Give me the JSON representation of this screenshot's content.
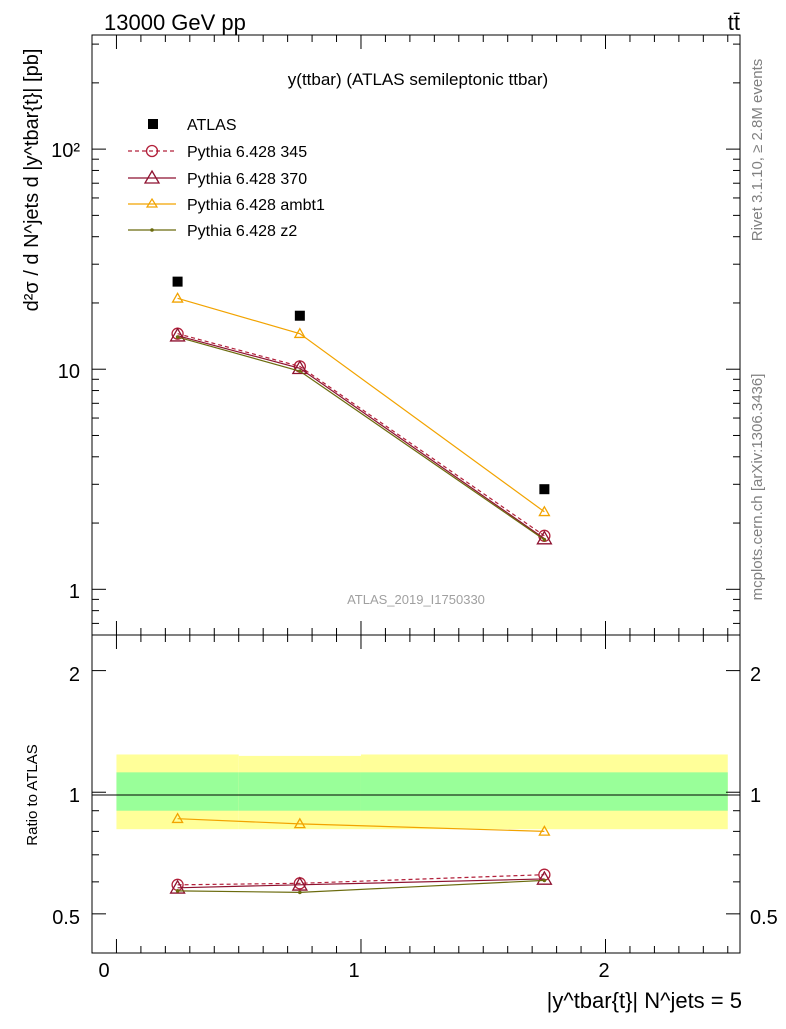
{
  "header": {
    "process": "13000 GeV pp",
    "tag": "tt̄",
    "plot_title": "y(ttbar) (ATLAS semileptonic ttbar)",
    "analysis_id": "ATLAS_2019_I1750330",
    "side_rivet": "Rivet 3.1.10, ≥ 2.8M events",
    "side_source": "mcplots.cern.ch [arXiv:1306.3436]"
  },
  "axes": {
    "y_main_label": "d²σ / d N^jets d |y^tbar{t}| [pb]",
    "y_ratio_label": "Ratio to ATLAS",
    "x_label": "|y^tbar{t}| N^jets = 5",
    "y_main_ticks": [
      "1",
      "10",
      "10²"
    ],
    "y_ratio_ticks": [
      "0.5",
      "1",
      "2"
    ],
    "x_ticks": [
      "0",
      "1",
      "2"
    ]
  },
  "legend": {
    "atlas": "ATLAS",
    "p345": "Pythia 6.428 345",
    "p370": "Pythia 6.428 370",
    "pambt1": "Pythia 6.428 ambt1",
    "pz2": "Pythia 6.428 z2"
  },
  "colors": {
    "data": "#000000",
    "p345": "#b2203a",
    "p370": "#8e1230",
    "pambt1": "#f2a300",
    "pz2": "#6b6b0e",
    "band_inner": "#99ff99",
    "band_outer": "#ffff99",
    "side_text": "#808080"
  },
  "chart_data": {
    "type": "line",
    "x_range": [
      -0.1,
      2.55
    ],
    "y_main_range": [
      0.62,
      330
    ],
    "y_main_scale": "log",
    "y_ratio_range": [
      0.4,
      2.45
    ],
    "y_ratio_scale": "log",
    "x_bins": [
      [
        0,
        0.5
      ],
      [
        0.5,
        1.0
      ],
      [
        1.0,
        2.5
      ]
    ],
    "x": [
      0.25,
      0.75,
      1.75
    ],
    "data": {
      "name": "ATLAS",
      "values": [
        25.0,
        17.5,
        2.85
      ]
    },
    "series": [
      {
        "name": "Pythia 6.428 345",
        "values": [
          14.5,
          10.3,
          1.75
        ],
        "ratio": [
          0.59,
          0.595,
          0.625
        ]
      },
      {
        "name": "Pythia 6.428 370",
        "values": [
          14.2,
          10.1,
          1.7
        ],
        "ratio": [
          0.58,
          0.59,
          0.61
        ]
      },
      {
        "name": "Pythia 6.428 ambt1",
        "values": [
          21.0,
          14.5,
          2.25
        ],
        "ratio": [
          0.86,
          0.835,
          0.8
        ]
      },
      {
        "name": "Pythia 6.428 z2",
        "values": [
          14.0,
          9.8,
          1.68
        ],
        "ratio": [
          0.57,
          0.565,
          0.605
        ]
      }
    ],
    "ratio_band_inner": [
      [
        0.9,
        1.12
      ],
      [
        0.9,
        1.12
      ],
      [
        0.9,
        1.12
      ]
    ],
    "ratio_band_outer": [
      [
        0.81,
        1.24
      ],
      [
        0.81,
        1.23
      ],
      [
        0.81,
        1.24
      ]
    ]
  }
}
